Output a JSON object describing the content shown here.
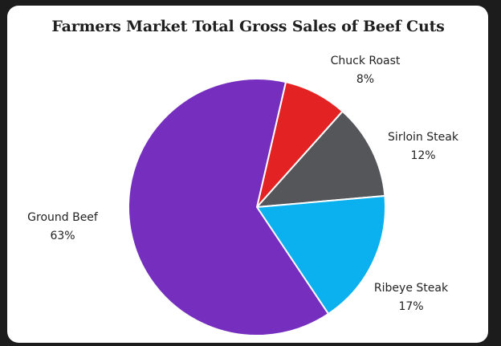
{
  "chart_data": {
    "type": "pie",
    "title": "Farmers Market Total Gross Sales of Beef Cuts",
    "slices": [
      {
        "label": "Chuck Roast",
        "value": 8,
        "value_label": "8%",
        "color": "#e32323"
      },
      {
        "label": "Sirloin Steak",
        "value": 12,
        "value_label": "12%",
        "color": "#545659"
      },
      {
        "label": "Ribeye Steak",
        "value": 17,
        "value_label": "17%",
        "color": "#0bb0ef"
      },
      {
        "label": "Ground Beef",
        "value": 63,
        "value_label": "63%",
        "color": "#752ebd"
      }
    ],
    "start_angle_deg": 13,
    "direction": "clockwise",
    "legend": "none"
  }
}
